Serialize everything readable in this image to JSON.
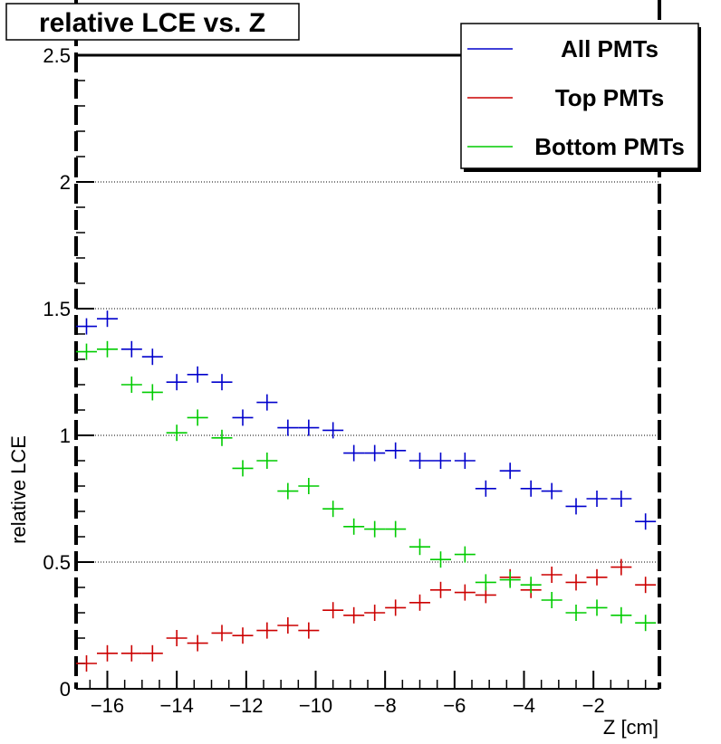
{
  "chart_data": {
    "type": "scatter",
    "title": "relative LCE vs. Z",
    "xlabel": "Z [cm]",
    "ylabel": "relative LCE",
    "xlim": [
      -16.9,
      -0.1
    ],
    "ylim": [
      0,
      2.55
    ],
    "xticks": [
      -16,
      -14,
      -12,
      -10,
      -8,
      -6,
      -4,
      -2
    ],
    "yticks": [
      0,
      0.5,
      1,
      1.5,
      2,
      2.5
    ],
    "ygrid": true,
    "legend_position": "top-right",
    "x_half_width": 0.3,
    "x": [
      -16.6,
      -16.0,
      -15.3,
      -14.7,
      -14.0,
      -13.4,
      -12.7,
      -12.1,
      -11.4,
      -10.8,
      -10.2,
      -9.5,
      -8.9,
      -8.3,
      -7.7,
      -7.0,
      -6.4,
      -5.7,
      -5.1,
      -4.4,
      -3.8,
      -3.2,
      -2.5,
      -1.9,
      -1.2,
      -0.5
    ],
    "series": [
      {
        "name": "All PMTs",
        "color": "#0000cc",
        "y": [
          1.43,
          1.46,
          1.34,
          1.31,
          1.21,
          1.24,
          1.21,
          1.07,
          1.13,
          1.03,
          1.03,
          1.02,
          0.93,
          0.93,
          0.94,
          0.9,
          0.9,
          0.9,
          0.79,
          0.86,
          0.79,
          0.78,
          0.72,
          0.75,
          0.75,
          0.66
        ]
      },
      {
        "name": "Top PMTs",
        "color": "#cc0000",
        "y": [
          0.1,
          0.14,
          0.14,
          0.14,
          0.2,
          0.18,
          0.22,
          0.21,
          0.23,
          0.25,
          0.23,
          0.31,
          0.29,
          0.3,
          0.32,
          0.34,
          0.39,
          0.38,
          0.37,
          0.44,
          0.39,
          0.45,
          0.42,
          0.44,
          0.48,
          0.41
        ]
      },
      {
        "name": "Bottom PMTs",
        "color": "#00cc00",
        "y": [
          1.33,
          1.34,
          1.2,
          1.17,
          1.01,
          1.07,
          0.99,
          0.87,
          0.9,
          0.78,
          0.8,
          0.71,
          0.64,
          0.63,
          0.63,
          0.56,
          0.51,
          0.53,
          0.42,
          0.43,
          0.41,
          0.35,
          0.3,
          0.32,
          0.29,
          0.26
        ]
      }
    ]
  }
}
